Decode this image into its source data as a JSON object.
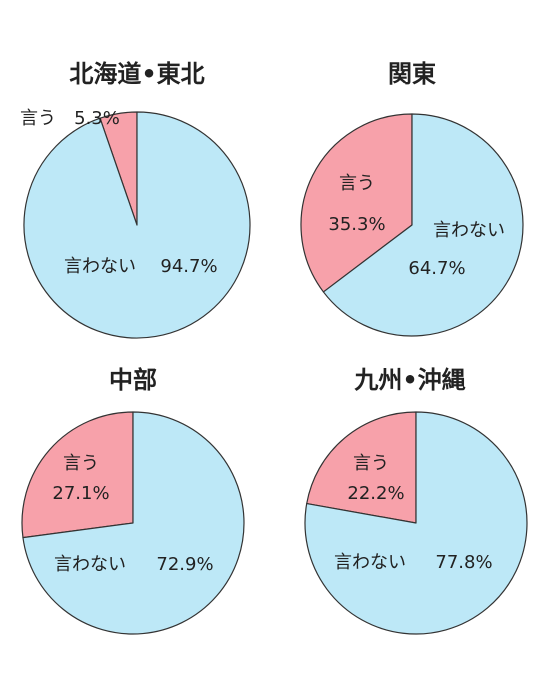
{
  "chart_data": [
    {
      "type": "pie",
      "title": "北海道•東北",
      "slices": [
        {
          "label": "言う",
          "value": 5.3,
          "value_label": "5.3%",
          "color": "#f7a1aa"
        },
        {
          "label": "言わない",
          "value": 94.7,
          "value_label": "94.7%",
          "color": "#bde8f7"
        }
      ]
    },
    {
      "type": "pie",
      "title": "関東",
      "slices": [
        {
          "label": "言う",
          "value": 35.3,
          "value_label": "35.3%",
          "color": "#f7a1aa"
        },
        {
          "label": "言わない",
          "value": 64.7,
          "value_label": "64.7%",
          "color": "#bde8f7"
        }
      ]
    },
    {
      "type": "pie",
      "title": "中部",
      "slices": [
        {
          "label": "言う",
          "value": 27.1,
          "value_label": "27.1%",
          "color": "#f7a1aa"
        },
        {
          "label": "言わない",
          "value": 72.9,
          "value_label": "72.9%",
          "color": "#bde8f7"
        }
      ]
    },
    {
      "type": "pie",
      "title": "九州•沖縄",
      "slices": [
        {
          "label": "言う",
          "value": 22.2,
          "value_label": "22.2%",
          "color": "#f7a1aa"
        },
        {
          "label": "言わない",
          "value": 77.8,
          "value_label": "77.8%",
          "color": "#bde8f7"
        }
      ]
    }
  ]
}
